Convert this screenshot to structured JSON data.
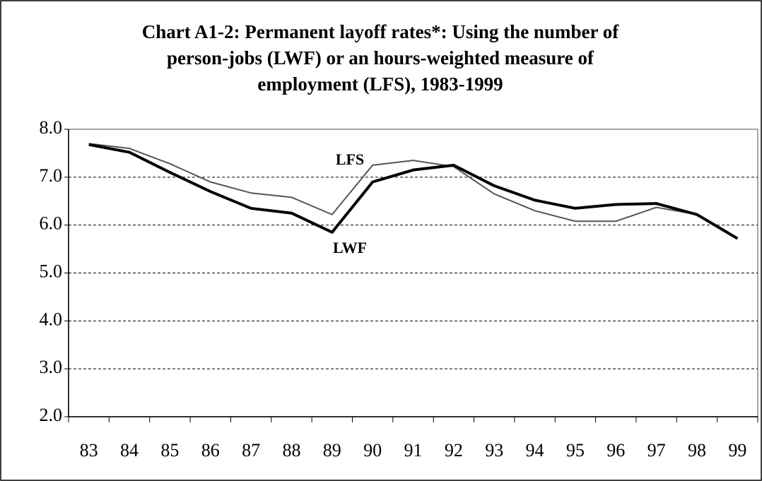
{
  "chart_data": {
    "type": "line",
    "title": [
      "Chart A1-2: Permanent layoff rates*: Using the number of",
      "person-jobs (LWF) or an hours-weighted measure of",
      "employment (LFS), 1983-1999"
    ],
    "categories": [
      "83",
      "84",
      "85",
      "86",
      "87",
      "88",
      "89",
      "90",
      "91",
      "92",
      "93",
      "94",
      "95",
      "96",
      "97",
      "98",
      "99"
    ],
    "series": [
      {
        "name": "LWF",
        "color": "#000000",
        "values": [
          7.68,
          7.52,
          7.1,
          6.7,
          6.35,
          6.25,
          5.85,
          6.9,
          7.15,
          7.25,
          6.82,
          6.52,
          6.35,
          6.43,
          6.45,
          6.22,
          5.72
        ]
      },
      {
        "name": "LFS",
        "color": "#555555",
        "values": [
          7.7,
          7.6,
          7.28,
          6.9,
          6.67,
          6.58,
          6.22,
          7.25,
          7.35,
          7.22,
          6.65,
          6.3,
          6.08,
          6.08,
          6.37,
          6.22,
          5.72
        ]
      }
    ],
    "ylim": [
      2,
      8
    ],
    "yticks": [
      {
        "value": 2,
        "label": "2.0"
      },
      {
        "value": 3,
        "label": "3.0"
      },
      {
        "value": 4,
        "label": "4.0"
      },
      {
        "value": 5,
        "label": "5.0"
      },
      {
        "value": 6,
        "label": "6.0"
      },
      {
        "value": 7,
        "label": "7.0"
      },
      {
        "value": 8,
        "label": "8.0"
      }
    ],
    "grid": true
  }
}
